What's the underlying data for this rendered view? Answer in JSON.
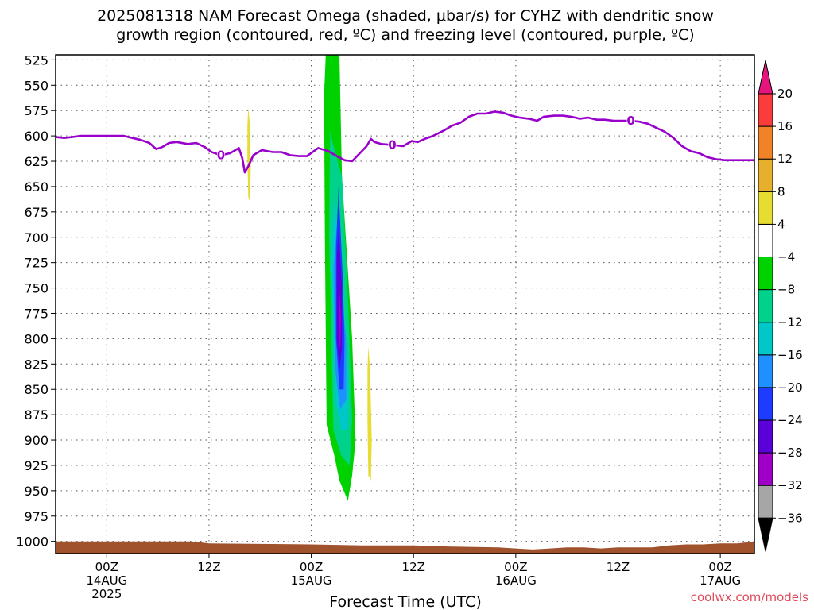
{
  "chart_data": {
    "type": "heatmap",
    "title_lines": [
      "2025081318 NAM Forecast Omega (shaded, μbar/s) for CYHZ with dendritic snow",
      "growth region (contoured, red, ºC) and freezing level (contoured, purple, ºC)"
    ],
    "xlabel": "Forecast Time (UTC)",
    "credit": "coolwx.com/models",
    "y_axis": {
      "scale": "pressure (hPa), inverted",
      "ticks": [
        "525",
        "550",
        "575",
        "600",
        "625",
        "650",
        "675",
        "700",
        "725",
        "750",
        "775",
        "800",
        "825",
        "850",
        "875",
        "900",
        "925",
        "950",
        "975",
        "1000"
      ],
      "range": [
        520,
        1012
      ]
    },
    "x_axis": {
      "range_hours_from_00Z_14AUG": [
        -6,
        76
      ],
      "ticks": [
        {
          "hour": 0,
          "lines": [
            "00Z",
            "14AUG",
            "2025"
          ]
        },
        {
          "hour": 12,
          "lines": [
            "12Z"
          ]
        },
        {
          "hour": 24,
          "lines": [
            "00Z",
            "15AUG"
          ]
        },
        {
          "hour": 36,
          "lines": [
            "12Z"
          ]
        },
        {
          "hour": 48,
          "lines": [
            "00Z",
            "16AUG"
          ]
        },
        {
          "hour": 60,
          "lines": [
            "12Z"
          ]
        },
        {
          "hour": 72,
          "lines": [
            "00Z",
            "17AUG"
          ]
        }
      ]
    },
    "grid": true,
    "colorbar": {
      "levels": [
        "-36",
        "-32",
        "-28",
        "-24",
        "-20",
        "-16",
        "-12",
        "-8",
        "-4",
        "4",
        "8",
        "12",
        "16",
        "20"
      ],
      "colors": [
        "#a6a6a6",
        "#9f00c8",
        "#5a00d8",
        "#1e3cff",
        "#1e90ff",
        "#00c8c8",
        "#00d28c",
        "#00d200",
        "#ffffff",
        "#e6dc32",
        "#e6af2d",
        "#f08228",
        "#fa3c3c"
      ],
      "over_color": "#e6157d",
      "under_color": "#000000"
    },
    "omega_regions": [
      {
        "level_color": "#00d200",
        "polygon": [
          [
            25.7,
            520
          ],
          [
            27.3,
            520
          ],
          [
            27.6,
            640
          ],
          [
            28.8,
            800
          ],
          [
            29.2,
            900
          ],
          [
            28.8,
            935
          ],
          [
            28.3,
            960
          ],
          [
            27.3,
            940
          ],
          [
            26.7,
            915
          ],
          [
            25.8,
            885
          ],
          [
            25.6,
            700
          ],
          [
            25.5,
            560
          ]
        ]
      },
      {
        "level_color": "#00d28c",
        "polygon": [
          [
            26.2,
            595
          ],
          [
            26.6,
            610
          ],
          [
            27.6,
            640
          ],
          [
            28.3,
            760
          ],
          [
            28.8,
            880
          ],
          [
            28.5,
            925
          ],
          [
            27.5,
            915
          ],
          [
            26.6,
            890
          ],
          [
            26.1,
            700
          ]
        ]
      },
      {
        "level_color": "#00c8c8",
        "polygon": [
          [
            26.6,
            660
          ],
          [
            27.1,
            700
          ],
          [
            27.8,
            760
          ],
          [
            28.4,
            850
          ],
          [
            28.3,
            890
          ],
          [
            27.5,
            890
          ],
          [
            26.8,
            860
          ],
          [
            26.4,
            720
          ]
        ]
      },
      {
        "level_color": "#1e90ff",
        "polygon": [
          [
            27.0,
            690
          ],
          [
            27.6,
            760
          ],
          [
            28.1,
            800
          ],
          [
            28.1,
            860
          ],
          [
            27.4,
            870
          ],
          [
            26.8,
            830
          ],
          [
            26.6,
            730
          ]
        ]
      },
      {
        "level_color": "#1e3cff",
        "polygon": [
          [
            27.2,
            650
          ],
          [
            27.7,
            740
          ],
          [
            27.9,
            800
          ],
          [
            27.8,
            850
          ],
          [
            27.3,
            850
          ],
          [
            26.9,
            800
          ],
          [
            26.9,
            710
          ]
        ]
      },
      {
        "level_color": "#5a00d8",
        "polygon": [
          [
            27.2,
            690
          ],
          [
            27.6,
            750
          ],
          [
            27.6,
            810
          ],
          [
            27.3,
            830
          ],
          [
            27.0,
            800
          ],
          [
            27.0,
            720
          ]
        ]
      },
      {
        "level_color": "#9f00c8",
        "polygon": [
          [
            27.3,
            750
          ],
          [
            27.5,
            780
          ],
          [
            27.4,
            810
          ],
          [
            27.2,
            800
          ],
          [
            27.2,
            770
          ]
        ]
      },
      {
        "level_color": "#e6dc32",
        "polygon": [
          [
            16.6,
            572
          ],
          [
            16.8,
            590
          ],
          [
            16.9,
            630
          ],
          [
            16.8,
            665
          ],
          [
            16.6,
            660
          ],
          [
            16.5,
            620
          ],
          [
            16.5,
            590
          ]
        ]
      },
      {
        "level_color": "#e6dc32",
        "polygon": [
          [
            30.7,
            808
          ],
          [
            30.9,
            830
          ],
          [
            31.1,
            900
          ],
          [
            31.0,
            940
          ],
          [
            30.7,
            935
          ],
          [
            30.6,
            880
          ],
          [
            30.6,
            830
          ]
        ]
      }
    ],
    "freezing_level": {
      "label": "0",
      "label_positions_hours": [
        13.4,
        33.5,
        61.5
      ],
      "points": [
        [
          -6,
          601
        ],
        [
          -5,
          602
        ],
        [
          -4,
          601
        ],
        [
          -3,
          600
        ],
        [
          -1,
          600
        ],
        [
          1,
          600
        ],
        [
          2,
          600
        ],
        [
          3,
          602
        ],
        [
          4,
          604
        ],
        [
          5,
          607
        ],
        [
          5.8,
          613
        ],
        [
          6.5,
          611
        ],
        [
          7.3,
          607
        ],
        [
          8.2,
          606
        ],
        [
          9.5,
          608
        ],
        [
          10.5,
          607
        ],
        [
          11.5,
          611
        ],
        [
          12.3,
          616
        ],
        [
          13.4,
          619
        ],
        [
          14.5,
          617
        ],
        [
          15.5,
          612
        ],
        [
          15.9,
          622
        ],
        [
          16.2,
          636
        ],
        [
          16.6,
          630
        ],
        [
          17.2,
          619
        ],
        [
          18.2,
          614
        ],
        [
          19.5,
          616
        ],
        [
          20.5,
          616
        ],
        [
          21.5,
          619
        ],
        [
          22.5,
          620
        ],
        [
          23.5,
          620
        ],
        [
          24.8,
          612
        ],
        [
          26.0,
          615
        ],
        [
          27.0,
          620
        ],
        [
          27.9,
          624
        ],
        [
          28.8,
          625
        ],
        [
          29.6,
          618
        ],
        [
          30.5,
          610
        ],
        [
          31.0,
          603
        ],
        [
          31.4,
          606
        ],
        [
          32.2,
          608
        ],
        [
          33.5,
          609
        ],
        [
          34.8,
          610
        ],
        [
          35.8,
          605
        ],
        [
          36.5,
          606
        ],
        [
          37.3,
          603
        ],
        [
          38.3,
          600
        ],
        [
          39.5,
          595
        ],
        [
          40.5,
          590
        ],
        [
          41.5,
          587
        ],
        [
          42.5,
          581
        ],
        [
          43.5,
          578
        ],
        [
          44.5,
          578
        ],
        [
          45.5,
          576
        ],
        [
          46.5,
          577
        ],
        [
          47.5,
          580
        ],
        [
          48.5,
          582
        ],
        [
          49.5,
          583
        ],
        [
          50.5,
          585
        ],
        [
          51.3,
          581
        ],
        [
          52.5,
          580
        ],
        [
          53.5,
          580
        ],
        [
          54.5,
          581
        ],
        [
          55.5,
          583
        ],
        [
          56.5,
          582
        ],
        [
          57.5,
          584
        ],
        [
          58.5,
          584
        ],
        [
          59.5,
          585
        ],
        [
          60.5,
          585
        ],
        [
          61.5,
          585
        ],
        [
          62.5,
          586
        ],
        [
          63.5,
          588
        ],
        [
          64.5,
          592
        ],
        [
          65.5,
          596
        ],
        [
          66.5,
          602
        ],
        [
          67.5,
          610
        ],
        [
          68.5,
          615
        ],
        [
          69.5,
          617
        ],
        [
          70.5,
          621
        ],
        [
          71.5,
          623
        ],
        [
          72.5,
          624
        ],
        [
          73.5,
          624
        ],
        [
          75,
          624
        ],
        [
          76,
          624
        ]
      ]
    },
    "surface": [
      [
        -6,
        1000
      ],
      [
        10,
        1000
      ],
      [
        12,
        1002
      ],
      [
        24,
        1003
      ],
      [
        30,
        1004
      ],
      [
        36,
        1004
      ],
      [
        40,
        1005
      ],
      [
        46,
        1006
      ],
      [
        48,
        1007
      ],
      [
        50,
        1008
      ],
      [
        52,
        1007
      ],
      [
        54,
        1006
      ],
      [
        56,
        1006
      ],
      [
        58,
        1007
      ],
      [
        60,
        1006
      ],
      [
        64,
        1006
      ],
      [
        66,
        1004
      ],
      [
        68,
        1003
      ],
      [
        70,
        1003
      ],
      [
        72,
        1002
      ],
      [
        74,
        1002
      ],
      [
        75,
        1001
      ],
      [
        76,
        1000
      ]
    ]
  }
}
